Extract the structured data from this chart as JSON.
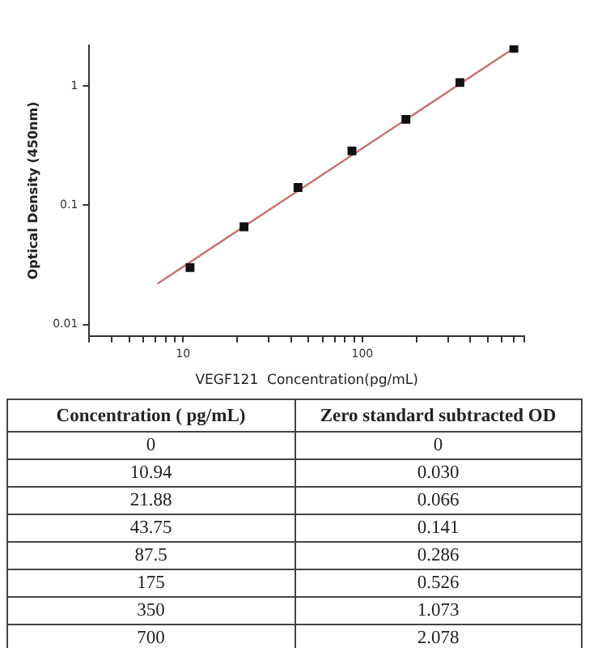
{
  "chart_data": {
    "type": "scatter",
    "xlabel": "VEGF121  Concentration(pg/mL)",
    "ylabel": "Optical Density (450nm)",
    "log": "xy",
    "grid": false,
    "legend": false,
    "marker": "square",
    "xlim": [
      3,
      800
    ],
    "ylim": [
      0.008,
      2.2
    ],
    "xticks": [
      {
        "value": 3,
        "label": null
      },
      {
        "value": 4,
        "label": null
      },
      {
        "value": 5,
        "label": null
      },
      {
        "value": 6,
        "label": null
      },
      {
        "value": 7,
        "label": null
      },
      {
        "value": 8,
        "label": null
      },
      {
        "value": 9,
        "label": null
      },
      10,
      {
        "value": 20,
        "label": null
      },
      {
        "value": 30,
        "label": null
      },
      {
        "value": 40,
        "label": null
      },
      {
        "value": 50,
        "label": null
      },
      {
        "value": 60,
        "label": null
      },
      {
        "value": 70,
        "label": null
      },
      {
        "value": 80,
        "label": null
      },
      {
        "value": 90,
        "label": null
      },
      100,
      {
        "value": 200,
        "label": null
      },
      {
        "value": 300,
        "label": null
      },
      {
        "value": 400,
        "label": null
      },
      {
        "value": 500,
        "label": null
      },
      {
        "value": 600,
        "label": null
      },
      {
        "value": 700,
        "label": null
      },
      {
        "value": 800,
        "label": null
      }
    ],
    "yticks": [
      0.01,
      0.1,
      1
    ],
    "series": [
      {
        "color": "#111111",
        "x": [
          10.94,
          21.88,
          43.75,
          87.5,
          175,
          350,
          700
        ],
        "values": [
          0.03,
          0.066,
          0.141,
          0.286,
          0.526,
          1.073,
          2.078
        ]
      },
      {
        "type": "line",
        "marker": "none",
        "color": "#c87070",
        "x": [
          7.2,
          700
        ],
        "values": [
          0.022,
          2.08
        ]
      }
    ],
    "annotations": [
      "Concentration ( pg/mL)",
      "Zero standard subtracted OD",
      "0",
      "0",
      "10.94",
      "0.030",
      "21.88",
      "0.066",
      "43.75",
      "0.141",
      "87.5",
      "0.286",
      "175",
      "0.526",
      "350",
      "1.073",
      "700",
      "2.078"
    ]
  }
}
